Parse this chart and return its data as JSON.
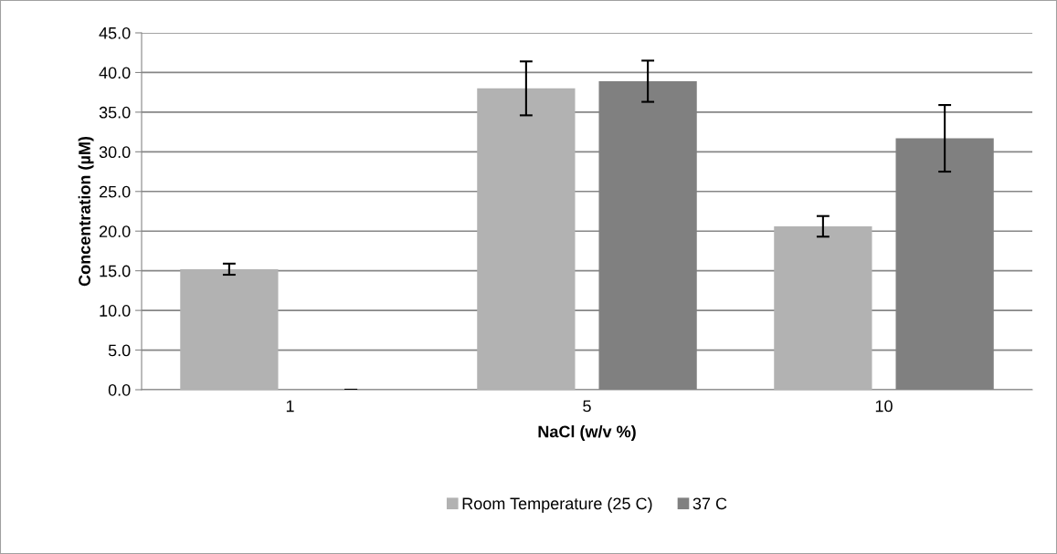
{
  "chart_data": {
    "type": "bar",
    "xlabel": "NaCl (w/v %)",
    "ylabel": "Concentration (µM)",
    "categories": [
      "1",
      "5",
      "10"
    ],
    "series": [
      {
        "name": "Room Temperature (25 C)",
        "color": "#b2b2b2",
        "values": [
          15.2,
          38.0,
          20.6
        ],
        "errors": [
          0.7,
          3.4,
          1.3
        ]
      },
      {
        "name": "37 C",
        "color": "#808080",
        "values": [
          0,
          38.9,
          31.7
        ],
        "errors": [
          0,
          2.6,
          4.2
        ]
      }
    ],
    "ylim": [
      0,
      45
    ],
    "yticks": [
      {
        "value": 0,
        "label": "0.0"
      },
      {
        "value": 5,
        "label": "5.0"
      },
      {
        "value": 10,
        "label": "10.0"
      },
      {
        "value": 15,
        "label": "15.0"
      },
      {
        "value": 20,
        "label": "20.0"
      },
      {
        "value": 25,
        "label": "25.0"
      },
      {
        "value": 30,
        "label": "30.0"
      },
      {
        "value": 35,
        "label": "35.0"
      },
      {
        "value": 40,
        "label": "40.0"
      },
      {
        "value": 45,
        "label": "45.0"
      }
    ],
    "grid": "y",
    "legend": "bottom"
  }
}
